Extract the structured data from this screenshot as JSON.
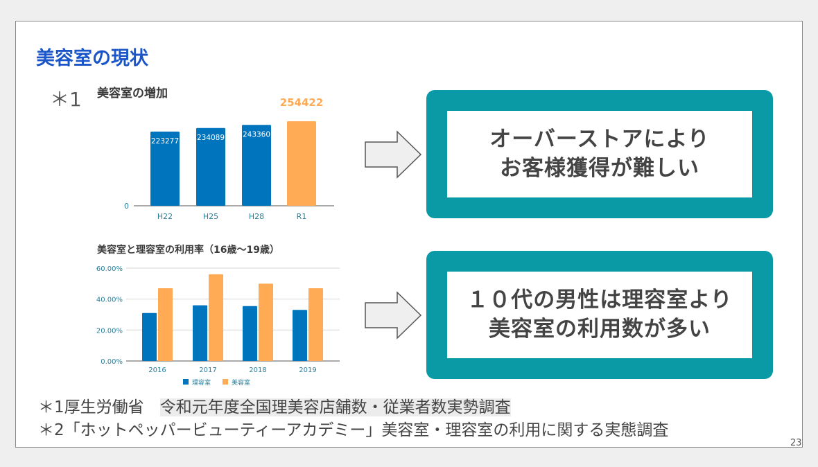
{
  "slide": {
    "title": "美容室の現状",
    "marker1": "＊1",
    "page_number": "23"
  },
  "colors": {
    "title": "#1a56c8",
    "bar_blue": "#0174be",
    "bar_orange": "#ffaa55",
    "frame_teal": "#0a9aa6",
    "axis_label": "#2a7f9a"
  },
  "callouts": [
    {
      "line1": "オーバーストアにより",
      "line2": "お客様獲得が難しい"
    },
    {
      "line1": "１０代の男性は理容室より",
      "line2": "美容室の利用数が多い"
    }
  ],
  "icons": [
    "arrow-right-icon",
    "arrow-right-icon"
  ],
  "footnotes": {
    "note1_prefix": "＊1厚生労働省　",
    "note1_source": "令和元年度全国理美容店舗数・従業者数実勢調査",
    "note2": "＊2「ホットペッパービューティーアカデミー」美容室・理容室の利用に関する実態調査"
  },
  "chart_data": [
    {
      "type": "bar",
      "title": "美容室の増加",
      "categories": [
        "H22",
        "H25",
        "H28",
        "R1"
      ],
      "values": [
        223277,
        234089,
        243360,
        254422
      ],
      "value_labels": [
        "223277",
        "234089",
        "243360",
        "254422"
      ],
      "bar_colors": [
        "#0174be",
        "#0174be",
        "#0174be",
        "#ffaa55"
      ],
      "ytick_labels": [
        "0"
      ],
      "ylim": [
        0,
        254422
      ],
      "grid": false
    },
    {
      "type": "bar",
      "title": "美容室と理容室の利用率（16歳～19歳）",
      "categories": [
        "2016",
        "2017",
        "2018",
        "2019"
      ],
      "series": [
        {
          "name": "理容室",
          "color": "#0174be",
          "values": [
            31,
            36,
            35.5,
            33
          ]
        },
        {
          "name": "美容室",
          "color": "#ffaa55",
          "values": [
            47,
            56,
            50,
            47
          ]
        }
      ],
      "yticks": [
        0,
        20,
        40,
        60
      ],
      "ytick_labels": [
        "0.00%",
        "20.00%",
        "40.00%",
        "60.00%"
      ],
      "ylim": [
        0,
        60
      ],
      "grid": true,
      "legend": "bottom"
    }
  ]
}
